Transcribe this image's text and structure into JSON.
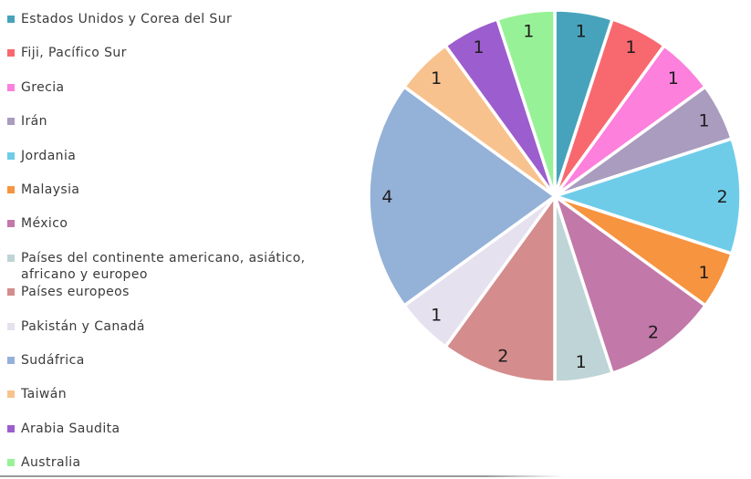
{
  "chart_data": {
    "type": "pie",
    "title": "",
    "legend_position": "left",
    "label_format": "value",
    "start_angle_deg": -90,
    "direction": "clockwise",
    "total": 20,
    "categories": [
      "Estados Unidos y Corea del Sur",
      "Fiji, Pacífico Sur",
      "Grecia",
      "Irán",
      "Jordania",
      "Malaysia",
      "México",
      "Países del continente americano, asiático, africano y europeo",
      "Países europeos",
      "Pakistán y Canadá",
      "Sudáfrica",
      "Taiwán",
      "Arabia Saudita",
      "Australia"
    ],
    "values": [
      1,
      1,
      1,
      1,
      2,
      1,
      2,
      1,
      2,
      1,
      4,
      1,
      1,
      1
    ],
    "colors": [
      "#47A3BC",
      "#F7696F",
      "#FC80DC",
      "#A99CBE",
      "#6FCCE9",
      "#F79440",
      "#C278A8",
      "#BFD4D6",
      "#D48C8C",
      "#E6E1EF",
      "#94B1D8",
      "#F8C28E",
      "#9C5DCE",
      "#97F297"
    ]
  },
  "divider_color": "#9a9a9c"
}
